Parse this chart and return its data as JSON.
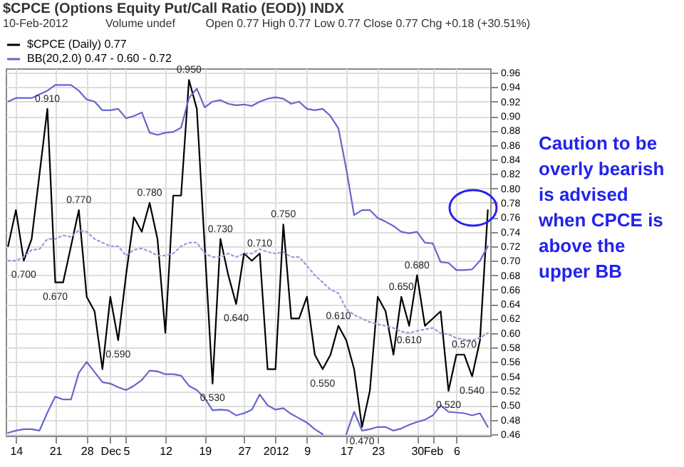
{
  "chart_data": {
    "type": "line",
    "title": "$CPCE (Options Equity Put/Call Ratio (EOD)) INDX",
    "subtitle": "10-Feb-2012",
    "annotations": [
      "Open 0.77  High 0.77  Low 0.77  Close 0.77  Chg +0.18 (+30.51%)",
      "Volume undef",
      "Caution to be overly bearish is advised when CPCE is above the upper BB"
    ],
    "categories": [
      null,
      "14",
      null,
      null,
      null,
      null,
      "21",
      null,
      null,
      null,
      "28",
      null,
      null,
      "Dec",
      null,
      "5",
      null,
      null,
      null,
      null,
      "12",
      null,
      null,
      null,
      null,
      "19",
      null,
      null,
      null,
      null,
      "27",
      null,
      null,
      null,
      "2012",
      null,
      null,
      null,
      "9",
      null,
      null,
      null,
      null,
      "17",
      null,
      null,
      null,
      "23",
      null,
      null,
      null,
      null,
      "30",
      null,
      "Feb",
      null,
      null,
      "6",
      null,
      null,
      null,
      null
    ],
    "series": [
      {
        "name": "$CPCE (Daily) 0.77",
        "color": "#000000",
        "values": [
          0.72,
          0.77,
          0.7,
          0.73,
          0.82,
          0.91,
          0.67,
          0.67,
          0.72,
          0.77,
          0.65,
          0.63,
          0.55,
          0.65,
          0.59,
          0.68,
          0.76,
          0.74,
          0.78,
          0.73,
          0.6,
          0.79,
          0.79,
          0.95,
          0.91,
          0.72,
          0.53,
          0.73,
          0.68,
          0.64,
          0.71,
          0.7,
          0.71,
          0.55,
          0.55,
          0.75,
          0.62,
          0.62,
          0.65,
          0.57,
          0.55,
          0.57,
          0.61,
          0.59,
          0.55,
          0.47,
          0.52,
          0.65,
          0.63,
          0.57,
          0.65,
          0.61,
          0.68,
          0.61,
          0.62,
          0.63,
          0.52,
          0.57,
          0.57,
          0.54,
          0.59,
          0.77
        ],
        "value_labels": [
          null,
          null,
          "0.700",
          null,
          null,
          "0.910",
          "0.670",
          null,
          null,
          "0.770",
          null,
          null,
          null,
          null,
          "0.590",
          null,
          null,
          null,
          "0.780",
          null,
          null,
          null,
          null,
          "0.950",
          null,
          null,
          "0.530",
          "0.730",
          null,
          "0.640",
          null,
          null,
          "0.710",
          null,
          null,
          "0.750",
          null,
          null,
          null,
          null,
          "0.550",
          null,
          "0.610",
          null,
          null,
          "0.470",
          null,
          null,
          null,
          null,
          "0.650",
          "0.610",
          "0.680",
          null,
          null,
          null,
          "0.520",
          null,
          "0.570",
          "0.540",
          null,
          null
        ]
      },
      {
        "name": "BB(20,2.0) 0.47 - 0.60 - 0.72",
        "color": "#6666cc",
        "values": [
          0.92,
          0.925,
          0.925,
          0.925,
          0.93,
          0.935,
          0.943,
          0.943,
          0.943,
          0.935,
          0.923,
          0.92,
          0.908,
          0.908,
          0.91,
          0.897,
          0.9,
          0.905,
          0.877,
          0.874,
          0.877,
          0.878,
          0.884,
          0.925,
          0.938,
          0.912,
          0.92,
          0.922,
          0.917,
          0.915,
          0.916,
          0.914,
          0.92,
          0.924,
          0.926,
          0.924,
          0.917,
          0.92,
          0.91,
          0.908,
          0.91,
          0.9,
          0.883,
          0.827,
          0.763,
          0.77,
          0.77,
          0.759,
          0.754,
          0.748,
          0.74,
          0.738,
          0.74,
          0.725,
          0.724,
          0.698,
          0.697,
          0.687,
          0.687,
          0.688,
          0.7,
          0.72
        ]
      },
      {
        "color": "#9999dd",
        "line_style": "dotted",
        "values": [
          0.7,
          0.7,
          0.705,
          0.715,
          0.716,
          0.73,
          0.73,
          0.735,
          0.733,
          0.742,
          0.74,
          0.73,
          0.725,
          0.72,
          0.72,
          0.707,
          0.715,
          0.717,
          0.713,
          0.707,
          0.707,
          0.71,
          0.72,
          0.725,
          0.725,
          0.71,
          0.705,
          0.705,
          0.71,
          0.705,
          0.71,
          0.71,
          0.716,
          0.712,
          0.71,
          0.712,
          0.705,
          0.705,
          0.693,
          0.68,
          0.67,
          0.66,
          0.655,
          0.633,
          0.625,
          0.62,
          0.615,
          0.612,
          0.61,
          0.607,
          0.602,
          0.6,
          0.603,
          0.605,
          0.607,
          0.6,
          0.598,
          0.593,
          0.591,
          0.59,
          0.593,
          0.6
        ]
      },
      {
        "color": "#6666cc",
        "values": [
          0.462,
          0.465,
          0.467,
          0.467,
          0.465,
          0.49,
          0.512,
          0.508,
          0.508,
          0.545,
          0.56,
          0.546,
          0.532,
          0.53,
          0.525,
          0.521,
          0.527,
          0.535,
          0.548,
          0.547,
          0.543,
          0.543,
          0.541,
          0.527,
          0.521,
          0.51,
          0.493,
          0.494,
          0.493,
          0.486,
          0.489,
          0.494,
          0.515,
          0.5,
          0.494,
          0.496,
          0.488,
          0.482,
          0.476,
          0.467,
          0.46,
          null,
          null,
          0.46,
          0.491,
          0.465,
          0.467,
          0.47,
          0.47,
          0.465,
          0.468,
          0.473,
          0.477,
          0.48,
          0.486,
          0.5,
          0.491,
          0.49,
          0.489,
          0.486,
          0.489,
          0.47
        ]
      }
    ],
    "ylim": [
      0.458,
      0.966
    ],
    "yticks": [
      0.46,
      0.48,
      {
        "value": 0.5,
        "label": "0.50"
      },
      0.52,
      0.54,
      0.56,
      0.58,
      {
        "value": 0.6,
        "label": "0.60"
      },
      0.62,
      0.64,
      0.66,
      0.68,
      {
        "value": 0.7,
        "label": "0.70"
      },
      0.72,
      0.74,
      0.76,
      0.78,
      {
        "value": 0.8,
        "label": "0.80"
      },
      0.82,
      0.84,
      0.86,
      0.88,
      {
        "value": 0.9,
        "label": "0.90"
      },
      0.92,
      0.94,
      0.96
    ],
    "grid": true,
    "legend": "top left"
  }
}
